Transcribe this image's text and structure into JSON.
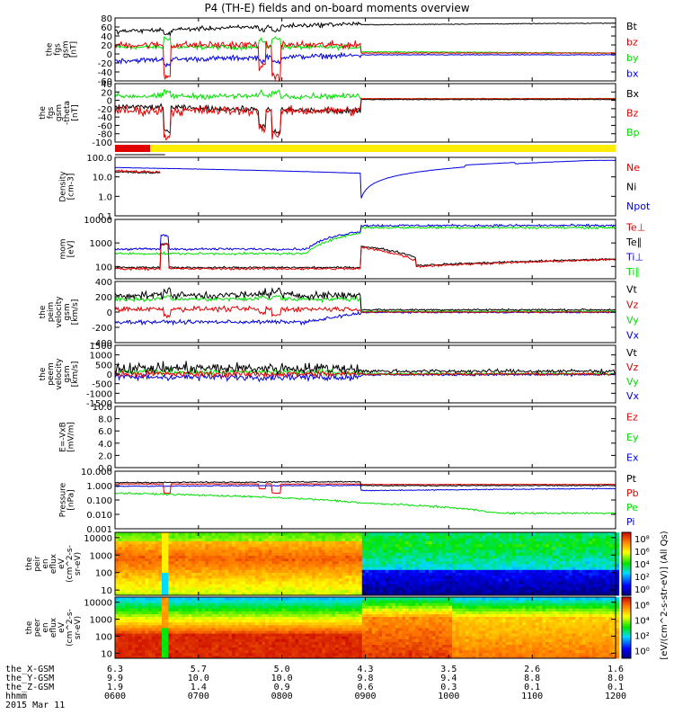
{
  "title": "P4 (TH-E) fields and on-board moments overview",
  "date": "2015 Mar 11",
  "colors": {
    "black": "#000000",
    "red": "#e00000",
    "green": "#00e000",
    "blue": "#0000e0",
    "yellow": "#ffee00"
  },
  "chart_data": [
    {
      "type": "line",
      "panel": "fgs_gsm",
      "ylabel_lines": [
        "the",
        "fgs",
        "gsm",
        "[nT]"
      ],
      "ylim": [
        -60,
        80
      ],
      "ticks": [
        "80",
        "60",
        "40",
        "20",
        "0",
        "-20",
        "-40",
        "-60"
      ],
      "legend": [
        {
          "label": "Bt",
          "color": "black"
        },
        {
          "label": "bz",
          "color": "red"
        },
        {
          "label": "by",
          "color": "green"
        },
        {
          "label": "bx",
          "color": "blue"
        }
      ]
    },
    {
      "type": "line",
      "panel": "fgs_gsm_theta",
      "ylabel_lines": [
        "the",
        "fgs",
        "gsm",
        "-theta",
        "[nT]"
      ],
      "ylim": [
        -100,
        40
      ],
      "ticks": [
        "40",
        "20",
        "0",
        "-20",
        "-40",
        "-60",
        "-80",
        "-100"
      ],
      "legend": [
        {
          "label": "Bx",
          "color": "black"
        },
        {
          "label": "Bz",
          "color": "red"
        },
        {
          "label": "Bp",
          "color": "green"
        }
      ]
    },
    {
      "type": "line",
      "panel": "density",
      "scale": "log",
      "ylabel_lines": [
        "Density",
        "[cm-3]"
      ],
      "ylim": [
        0.1,
        100
      ],
      "ticks": [
        "100.0",
        "10.0",
        "1.0",
        "0.1"
      ],
      "legend": [
        {
          "label": "Ne",
          "color": "red"
        },
        {
          "label": "Ni",
          "color": "black"
        },
        {
          "label": "Npot",
          "color": "blue"
        }
      ]
    },
    {
      "type": "line",
      "panel": "temperature",
      "scale": "log",
      "ylabel_lines": [
        "mom",
        "[eV]"
      ],
      "ylim": [
        30,
        10000
      ],
      "ticks": [
        "10000",
        "1000",
        "100"
      ],
      "legend": [
        {
          "label": "Te⊥",
          "color": "red"
        },
        {
          "label": "Te∥",
          "color": "black"
        },
        {
          "label": "Ti⊥",
          "color": "blue"
        },
        {
          "label": "Ti∥",
          "color": "green"
        }
      ]
    },
    {
      "type": "line",
      "panel": "peim_velocity",
      "ylabel_lines": [
        "the",
        "peim",
        "velocity",
        "gsm",
        "[km/s]"
      ],
      "ylim": [
        -400,
        400
      ],
      "ticks": [
        "400",
        "200",
        "0",
        "-200",
        "-400"
      ],
      "legend": [
        {
          "label": "Vt",
          "color": "black"
        },
        {
          "label": "Vz",
          "color": "red"
        },
        {
          "label": "Vy",
          "color": "green"
        },
        {
          "label": "Vx",
          "color": "blue"
        }
      ]
    },
    {
      "type": "line",
      "panel": "peem_velocity",
      "ylabel_lines": [
        "the",
        "peem",
        "velocity",
        "gsm",
        "[km/s]"
      ],
      "ylim": [
        -1500,
        1500
      ],
      "ticks": [
        "1500",
        "1000",
        "500",
        "0",
        "-500",
        "-1000",
        "-1500"
      ],
      "legend": [
        {
          "label": "Vt",
          "color": "black"
        },
        {
          "label": "Vz",
          "color": "red"
        },
        {
          "label": "Vy",
          "color": "green"
        },
        {
          "label": "Vx",
          "color": "blue"
        }
      ]
    },
    {
      "type": "line",
      "panel": "efield",
      "ylabel_lines": [
        "E=-VxB",
        "[mV/m]"
      ],
      "ylim": [
        0,
        10
      ],
      "ticks": [
        "10.0",
        "8.0",
        "6.0",
        "4.0",
        "2.0",
        "0.0"
      ],
      "legend": [
        {
          "label": "Ez",
          "color": "red"
        },
        {
          "label": "Ey",
          "color": "green"
        },
        {
          "label": "Ex",
          "color": "blue"
        }
      ]
    },
    {
      "type": "line",
      "panel": "pressure",
      "scale": "log",
      "ylabel_lines": [
        "Pressure",
        "[nPa]"
      ],
      "ylim": [
        0.001,
        10
      ],
      "ticks": [
        "10.000",
        "1.000",
        "0.100",
        "0.010",
        "0.001"
      ],
      "legend": [
        {
          "label": "Pt",
          "color": "black"
        },
        {
          "label": "Pb",
          "color": "red"
        },
        {
          "label": "Pe",
          "color": "green"
        },
        {
          "label": "Pi",
          "color": "blue"
        }
      ]
    },
    {
      "type": "heatmap",
      "panel": "peir_eflux",
      "scale": "log",
      "ylabel_lines": [
        "the",
        "peir",
        "en",
        "eflux",
        "eV",
        "(cm^2-s-",
        "sr-eV)"
      ],
      "ylim": [
        5,
        20000
      ],
      "ticks": [
        "10000",
        "1000",
        "100",
        "10"
      ]
    },
    {
      "type": "heatmap",
      "panel": "peer_eflux",
      "scale": "log",
      "ylabel_lines": [
        "the",
        "peer",
        "en",
        "eflux",
        "eV",
        "(cm^2-s-",
        "sr-eV)"
      ],
      "ylim": [
        5,
        20000
      ],
      "ticks": [
        "10000",
        "1000",
        "100",
        "10"
      ]
    }
  ],
  "colorbar": {
    "ticks": [
      "10^8",
      "10^6",
      "10^4",
      "10^2",
      "10^0"
    ],
    "ticks_lower": [
      "10^6",
      "10^4",
      "10^2",
      "10^0"
    ],
    "label": "[eV/(cm^2-s-str-eV)] (All Qs)"
  },
  "x_axis": {
    "rows": [
      {
        "label": "the_X-GSM",
        "values": [
          "6.3",
          "5.7",
          "5.0",
          "4.3",
          "3.5",
          "2.6",
          "1.6"
        ]
      },
      {
        "label": "the_Y-GSM",
        "values": [
          "9.9",
          "10.0",
          "10.0",
          "9.8",
          "9.4",
          "8.8",
          "8.0"
        ]
      },
      {
        "label": "the_Z-GSM",
        "values": [
          "1.9",
          "1.4",
          "0.9",
          "0.6",
          "0.3",
          "0.1",
          "0.1"
        ]
      },
      {
        "label": "hhmm",
        "values": [
          "0600",
          "0700",
          "0800",
          "0900",
          "1000",
          "1100",
          "1200"
        ]
      }
    ]
  }
}
